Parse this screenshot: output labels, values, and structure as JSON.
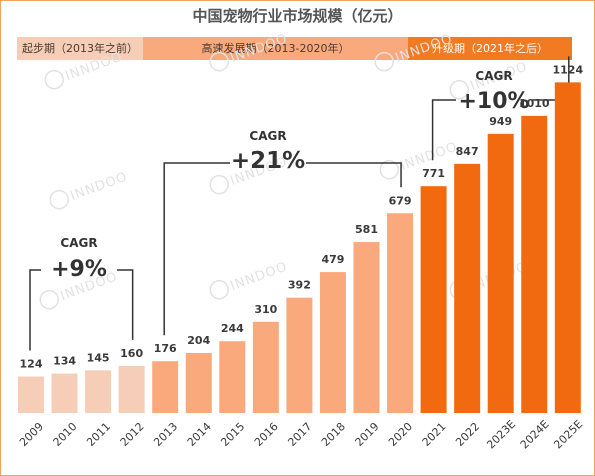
{
  "chart_data": {
    "type": "bar",
    "title": "中国宠物行业市场规模（亿元）",
    "categories": [
      "2009",
      "2010",
      "2011",
      "2012",
      "2013",
      "2014",
      "2015",
      "2016",
      "2017",
      "2018",
      "2019",
      "2020",
      "2021",
      "2022",
      "2023E",
      "2024E",
      "2025E"
    ],
    "values": [
      124,
      134,
      145,
      160,
      176,
      204,
      244,
      310,
      392,
      479,
      581,
      679,
      771,
      847,
      949,
      1010,
      1124
    ],
    "phases": [
      {
        "label": "起步期（2013年之前）",
        "color": "#f6cdb7"
      },
      {
        "label": "高速发展期（2013-2020年）",
        "color": "#f9a97c"
      },
      {
        "label": "升级期（2021年之后）",
        "color": "#f27a22"
      }
    ],
    "bar_colors": [
      "#f6cdb7",
      "#f6cdb7",
      "#f6cdb7",
      "#f6cdb7",
      "#f9a97c",
      "#f9a97c",
      "#f9a97c",
      "#f9a97c",
      "#f9a97c",
      "#f9a97c",
      "#f9a97c",
      "#f9a97c",
      "#f26a10",
      "#f26a10",
      "#f26a10",
      "#f26a10",
      "#f26a10"
    ],
    "annotations": [
      {
        "heading": "CAGR",
        "value": "+9%"
      },
      {
        "heading": "CAGR",
        "value": "+21%"
      },
      {
        "heading": "CAGR",
        "value": "+10%"
      }
    ],
    "ylim": [
      0,
      1200
    ]
  },
  "watermark": "INNDOO",
  "border_color": "#f5a25d"
}
